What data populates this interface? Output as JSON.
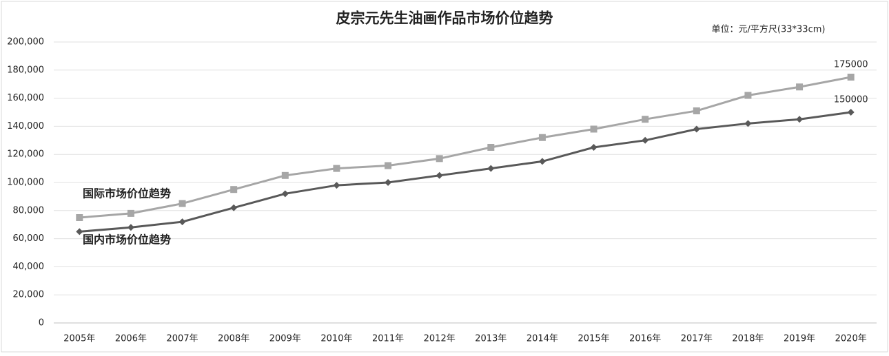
{
  "chart_data": {
    "type": "line",
    "title": "皮宗元先生油画作品市场价位趋势",
    "subtitle": "单位：元/平方尺(33*33cm)",
    "categories": [
      "2005年",
      "2006年",
      "2007年",
      "2008年",
      "2009年",
      "2010年",
      "2011年",
      "2012年",
      "2013年",
      "2014年",
      "2015年",
      "2016年",
      "2017年",
      "2018年",
      "2019年",
      "2020年"
    ],
    "series": [
      {
        "name": "国际市场价位趋势",
        "color": "#a6a6a6",
        "marker": "square",
        "values": [
          75000,
          78000,
          85000,
          95000,
          105000,
          110000,
          112000,
          117000,
          125000,
          132000,
          138000,
          145000,
          151000,
          162000,
          168000,
          175000
        ]
      },
      {
        "name": "国内市场价位趋势",
        "color": "#595959",
        "marker": "diamond",
        "values": [
          65000,
          68000,
          72000,
          82000,
          92000,
          98000,
          100000,
          105000,
          110000,
          115000,
          125000,
          130000,
          138000,
          142000,
          145000,
          150000
        ]
      }
    ],
    "data_labels": "last",
    "ylim": [
      0,
      200000
    ],
    "yticks": [
      0,
      {
        "value": 20000,
        "label": "20,000"
      },
      {
        "value": 40000,
        "label": "40,000"
      },
      {
        "value": 60000,
        "label": "60,000"
      },
      {
        "value": 80000,
        "label": "80,000"
      },
      {
        "value": 100000,
        "label": "100,000"
      },
      {
        "value": 120000,
        "label": "120,000"
      },
      {
        "value": 140000,
        "label": "140,000"
      },
      {
        "value": 160000,
        "label": "160,000"
      },
      {
        "value": 180000,
        "label": "180,000"
      },
      {
        "value": 200000,
        "label": "200,000"
      }
    ],
    "grid": true
  }
}
